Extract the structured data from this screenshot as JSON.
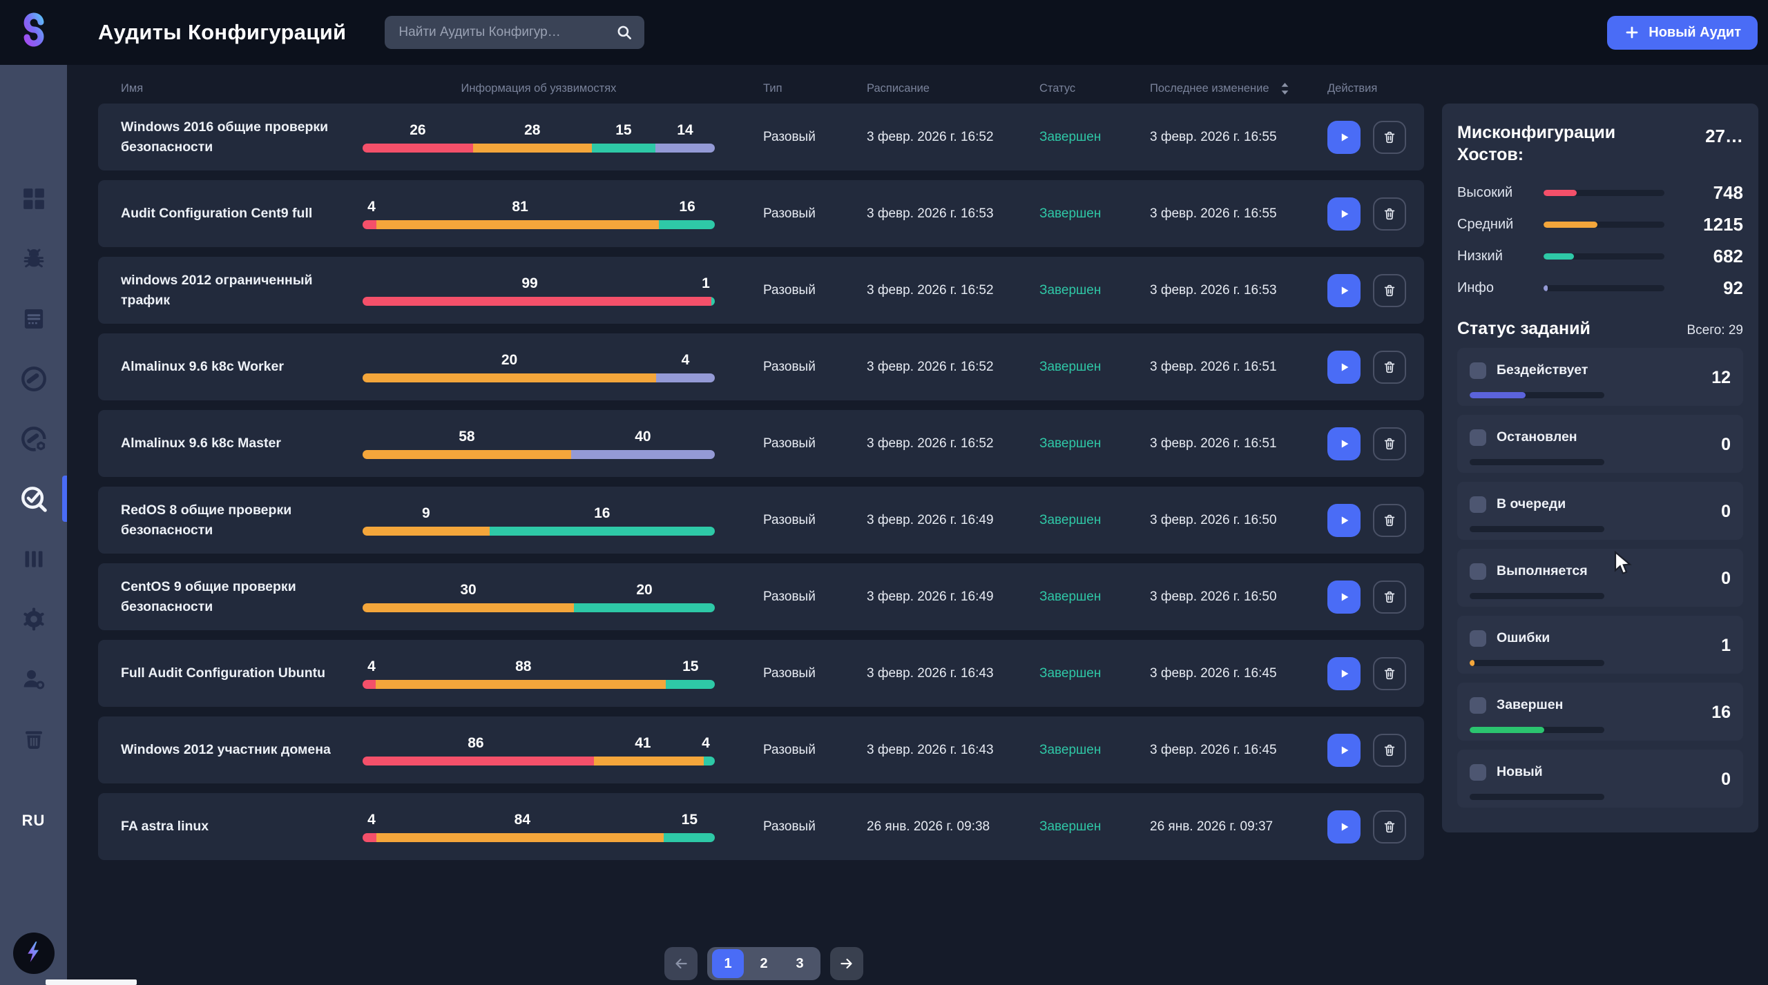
{
  "app": {
    "title": "Аудиты Конфигураций",
    "search_placeholder": "Найти Аудиты Конфигур…",
    "new_audit_label": "Новый Аудит",
    "language": "RU"
  },
  "colors": {
    "severity": {
      "high": "#f4506a",
      "medium": "#f4a63b",
      "low": "#2ec9a7",
      "info": "#949ad6"
    },
    "accent_blue": "#4a6cf6",
    "status_done_text": "#2fc7a6"
  },
  "sidebar": {
    "items": [
      {
        "name": "dashboard",
        "active": false
      },
      {
        "name": "vulnerabilities-bug",
        "active": false
      },
      {
        "name": "reports-document",
        "active": false
      },
      {
        "name": "scan-disc",
        "active": false
      },
      {
        "name": "scan-settings",
        "active": false
      },
      {
        "name": "config-audits-check",
        "active": true
      },
      {
        "name": "columns",
        "active": false
      },
      {
        "name": "settings-gear",
        "active": false
      },
      {
        "name": "users",
        "active": false
      },
      {
        "name": "trash",
        "active": false
      }
    ]
  },
  "table": {
    "headers": {
      "name": "Имя",
      "info": "Информация об уязвимостях",
      "type": "Тип",
      "schedule": "Расписание",
      "status": "Статус",
      "modified": "Последнее изменение",
      "actions": "Действия"
    },
    "rows": [
      {
        "name": "Windows 2016 общие проверки безопасности",
        "segments": [
          {
            "severity": "high",
            "value": 26
          },
          {
            "severity": "medium",
            "value": 28
          },
          {
            "severity": "low",
            "value": 15
          },
          {
            "severity": "info",
            "value": 14
          }
        ],
        "type": "Разовый",
        "schedule": "3 февр. 2026 г. 16:52",
        "status": "Завершен",
        "modified": "3 февр. 2026 г. 16:55"
      },
      {
        "name": "Audit Configuration Cent9 full",
        "segments": [
          {
            "severity": "high",
            "value": 4
          },
          {
            "severity": "medium",
            "value": 81
          },
          {
            "severity": "low",
            "value": 16
          }
        ],
        "type": "Разовый",
        "schedule": "3 февр. 2026 г. 16:53",
        "status": "Завершен",
        "modified": "3 февр. 2026 г. 16:55"
      },
      {
        "name": "windows 2012 ограниченный трафик",
        "segments": [
          {
            "severity": "high",
            "value": 99
          },
          {
            "severity": "low",
            "value": 1
          }
        ],
        "type": "Разовый",
        "schedule": "3 февр. 2026 г. 16:52",
        "status": "Завершен",
        "modified": "3 февр. 2026 г. 16:53"
      },
      {
        "name": "Almalinux 9.6 k8c Worker",
        "segments": [
          {
            "severity": "medium",
            "value": 20
          },
          {
            "severity": "info",
            "value": 4
          }
        ],
        "type": "Разовый",
        "schedule": "3 февр. 2026 г. 16:52",
        "status": "Завершен",
        "modified": "3 февр. 2026 г. 16:51"
      },
      {
        "name": "Almalinux 9.6 k8c Master",
        "segments": [
          {
            "severity": "medium",
            "value": 58
          },
          {
            "severity": "info",
            "value": 40
          }
        ],
        "type": "Разовый",
        "schedule": "3 февр. 2026 г. 16:52",
        "status": "Завершен",
        "modified": "3 февр. 2026 г. 16:51"
      },
      {
        "name": "RedOS 8 общие проверки безопасности",
        "segments": [
          {
            "severity": "medium",
            "value": 9
          },
          {
            "severity": "low",
            "value": 16
          }
        ],
        "type": "Разовый",
        "schedule": "3 февр. 2026 г. 16:49",
        "status": "Завершен",
        "modified": "3 февр. 2026 г. 16:50"
      },
      {
        "name": "CentOS 9 общие проверки безопасности",
        "segments": [
          {
            "severity": "medium",
            "value": 30
          },
          {
            "severity": "low",
            "value": 20
          }
        ],
        "type": "Разовый",
        "schedule": "3 февр. 2026 г. 16:49",
        "status": "Завершен",
        "modified": "3 февр. 2026 г. 16:50"
      },
      {
        "name": "Full Audit Configuration Ubuntu",
        "segments": [
          {
            "severity": "high",
            "value": 4
          },
          {
            "severity": "medium",
            "value": 88
          },
          {
            "severity": "low",
            "value": 15
          }
        ],
        "type": "Разовый",
        "schedule": "3 февр. 2026 г. 16:43",
        "status": "Завершен",
        "modified": "3 февр. 2026 г. 16:45"
      },
      {
        "name": "Windows 2012 участник домена",
        "segments": [
          {
            "severity": "high",
            "value": 86
          },
          {
            "severity": "medium",
            "value": 41
          },
          {
            "severity": "low",
            "value": 4
          }
        ],
        "type": "Разовый",
        "schedule": "3 февр. 2026 г. 16:43",
        "status": "Завершен",
        "modified": "3 февр. 2026 г. 16:45"
      },
      {
        "name": "FA astra linux",
        "segments": [
          {
            "severity": "high",
            "value": 4
          },
          {
            "severity": "medium",
            "value": 84
          },
          {
            "severity": "low",
            "value": 15
          }
        ],
        "type": "Разовый",
        "schedule": "26 янв. 2026 г. 09:38",
        "status": "Завершен",
        "modified": "26 янв. 2026 г. 09:37"
      }
    ]
  },
  "misconfig": {
    "title": "Мисконфигурации Хостов:",
    "total_display": "27…",
    "items": [
      {
        "label": "Высокий",
        "value": 748,
        "severity": "high"
      },
      {
        "label": "Средний",
        "value": 1215,
        "severity": "medium"
      },
      {
        "label": "Низкий",
        "value": 682,
        "severity": "low"
      },
      {
        "label": "Инфо",
        "value": 92,
        "severity": "info"
      }
    ]
  },
  "tasks": {
    "title": "Статус заданий",
    "total_label": "Всего: 29",
    "total": 29,
    "items": [
      {
        "label": "Бездействует",
        "count": 12,
        "color": "#5b63dc"
      },
      {
        "label": "Остановлен",
        "count": 0,
        "color": null
      },
      {
        "label": "В очереди",
        "count": 0,
        "color": null
      },
      {
        "label": "Выполняется",
        "count": 0,
        "color": null
      },
      {
        "label": "Ошибки",
        "count": 1,
        "color": "#f4a63b"
      },
      {
        "label": "Завершен",
        "count": 16,
        "color": "#2bc46f"
      },
      {
        "label": "Новый",
        "count": 0,
        "color": null
      }
    ]
  },
  "pagination": {
    "pages": [
      "1",
      "2",
      "3"
    ],
    "active_page": "1"
  }
}
